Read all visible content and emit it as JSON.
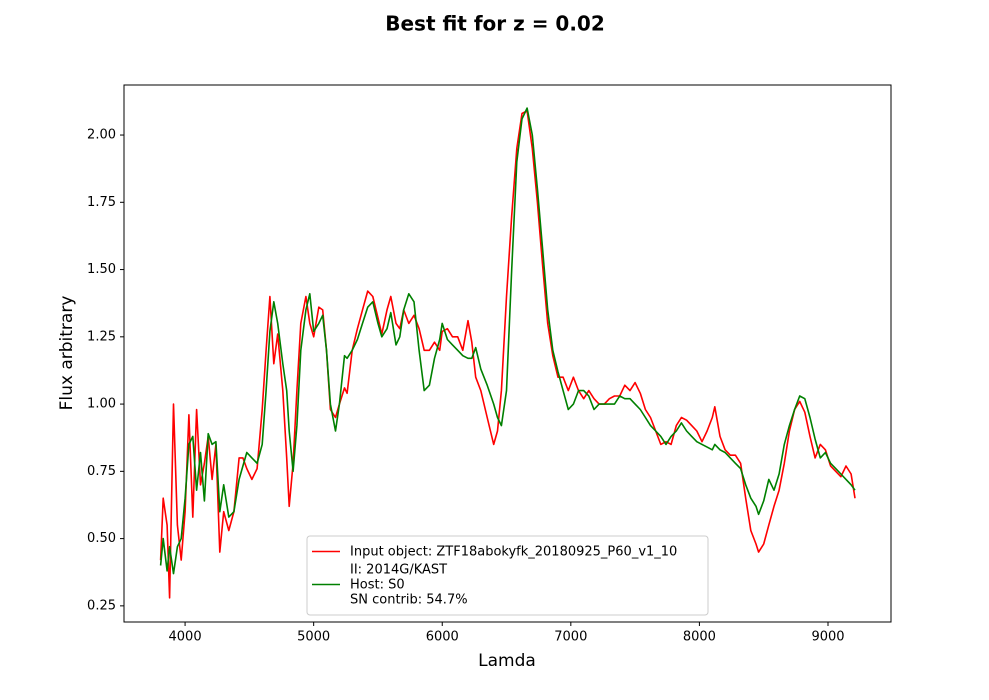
{
  "chart_data": {
    "type": "line",
    "title": "Best fit for z = 0.02",
    "xlabel": "Lamda",
    "ylabel": "Flux arbitrary",
    "x": [
      3810,
      3830,
      3860,
      3880,
      3910,
      3940,
      3970,
      4000,
      4030,
      4060,
      4090,
      4120,
      4150,
      4180,
      4210,
      4240,
      4270,
      4300,
      4340,
      4380,
      4420,
      4450,
      4480,
      4520,
      4560,
      4600,
      4630,
      4660,
      4690,
      4720,
      4760,
      4790,
      4810,
      4840,
      4870,
      4900,
      4940,
      4970,
      5000,
      5040,
      5070,
      5100,
      5130,
      5170,
      5200,
      5240,
      5260,
      5300,
      5340,
      5380,
      5420,
      5460,
      5500,
      5530,
      5570,
      5600,
      5640,
      5670,
      5700,
      5740,
      5780,
      5820,
      5860,
      5900,
      5940,
      5980,
      6000,
      6040,
      6080,
      6120,
      6160,
      6200,
      6230,
      6260,
      6300,
      6350,
      6400,
      6430,
      6460,
      6500,
      6540,
      6580,
      6620,
      6660,
      6700,
      6740,
      6780,
      6820,
      6860,
      6900,
      6940,
      6980,
      7020,
      7060,
      7100,
      7140,
      7180,
      7220,
      7260,
      7300,
      7340,
      7380,
      7420,
      7460,
      7500,
      7540,
      7580,
      7620,
      7660,
      7700,
      7740,
      7780,
      7820,
      7860,
      7900,
      7940,
      7980,
      8020,
      8060,
      8100,
      8120,
      8160,
      8200,
      8240,
      8280,
      8320,
      8360,
      8400,
      8440,
      8460,
      8500,
      8540,
      8580,
      8620,
      8660,
      8700,
      8740,
      8780,
      8820,
      8860,
      8900,
      8940,
      8980,
      9020,
      9060,
      9100,
      9140,
      9180,
      9210
    ],
    "series": [
      {
        "name": "Input object: ZTF18abokyfk_20180925_P60_v1_10",
        "color": "#ff0000",
        "values": [
          0.42,
          0.65,
          0.55,
          0.28,
          1.0,
          0.55,
          0.42,
          0.6,
          0.96,
          0.58,
          0.98,
          0.7,
          0.78,
          0.88,
          0.72,
          0.85,
          0.45,
          0.6,
          0.53,
          0.6,
          0.8,
          0.8,
          0.76,
          0.72,
          0.76,
          0.98,
          1.2,
          1.4,
          1.15,
          1.26,
          1.05,
          0.8,
          0.62,
          0.78,
          1.05,
          1.3,
          1.4,
          1.3,
          1.25,
          1.36,
          1.35,
          1.2,
          0.98,
          0.95,
          1.0,
          1.06,
          1.04,
          1.2,
          1.28,
          1.35,
          1.42,
          1.4,
          1.32,
          1.26,
          1.35,
          1.4,
          1.3,
          1.28,
          1.35,
          1.3,
          1.33,
          1.28,
          1.2,
          1.2,
          1.23,
          1.2,
          1.27,
          1.28,
          1.25,
          1.25,
          1.2,
          1.31,
          1.23,
          1.1,
          1.05,
          0.95,
          0.85,
          0.9,
          1.05,
          1.4,
          1.7,
          1.95,
          2.08,
          2.09,
          1.95,
          1.75,
          1.52,
          1.3,
          1.18,
          1.1,
          1.1,
          1.05,
          1.1,
          1.05,
          1.02,
          1.05,
          1.02,
          1.0,
          1.0,
          1.02,
          1.03,
          1.03,
          1.07,
          1.05,
          1.08,
          1.04,
          0.98,
          0.95,
          0.9,
          0.85,
          0.86,
          0.85,
          0.92,
          0.95,
          0.94,
          0.92,
          0.9,
          0.86,
          0.9,
          0.95,
          0.99,
          0.88,
          0.83,
          0.81,
          0.81,
          0.78,
          0.65,
          0.53,
          0.48,
          0.45,
          0.48,
          0.55,
          0.62,
          0.68,
          0.78,
          0.9,
          0.98,
          1.01,
          0.97,
          0.88,
          0.8,
          0.85,
          0.83,
          0.77,
          0.75,
          0.73,
          0.77,
          0.74,
          0.65
        ]
      },
      {
        "name": "II: 2014G/KAST\nHost: S0\nSN contrib:  54.7%",
        "color": "#008000",
        "values": [
          0.4,
          0.5,
          0.38,
          0.47,
          0.37,
          0.47,
          0.5,
          0.65,
          0.85,
          0.88,
          0.68,
          0.82,
          0.64,
          0.89,
          0.85,
          0.86,
          0.6,
          0.7,
          0.58,
          0.6,
          0.72,
          0.77,
          0.82,
          0.8,
          0.78,
          0.85,
          1.05,
          1.27,
          1.38,
          1.3,
          1.15,
          1.05,
          0.9,
          0.75,
          0.92,
          1.2,
          1.35,
          1.41,
          1.27,
          1.3,
          1.33,
          1.2,
          1.0,
          0.9,
          1.0,
          1.18,
          1.17,
          1.2,
          1.24,
          1.3,
          1.36,
          1.38,
          1.3,
          1.25,
          1.28,
          1.34,
          1.22,
          1.25,
          1.35,
          1.41,
          1.38,
          1.2,
          1.05,
          1.07,
          1.17,
          1.24,
          1.3,
          1.24,
          1.22,
          1.2,
          1.18,
          1.17,
          1.17,
          1.21,
          1.13,
          1.07,
          1.0,
          0.95,
          0.92,
          1.05,
          1.5,
          1.9,
          2.06,
          2.1,
          2.0,
          1.8,
          1.58,
          1.35,
          1.2,
          1.12,
          1.05,
          0.98,
          1.0,
          1.05,
          1.05,
          1.03,
          0.98,
          1.0,
          1.0,
          1.0,
          1.0,
          1.03,
          1.02,
          1.02,
          1.0,
          0.98,
          0.95,
          0.92,
          0.9,
          0.88,
          0.85,
          0.88,
          0.9,
          0.93,
          0.9,
          0.88,
          0.86,
          0.85,
          0.84,
          0.83,
          0.85,
          0.83,
          0.82,
          0.8,
          0.78,
          0.76,
          0.7,
          0.65,
          0.62,
          0.59,
          0.64,
          0.72,
          0.68,
          0.74,
          0.85,
          0.92,
          0.98,
          1.03,
          1.02,
          0.95,
          0.87,
          0.8,
          0.82,
          0.78,
          0.76,
          0.74,
          0.72,
          0.7,
          0.68
        ]
      }
    ],
    "xlim": [
      3525,
      9490
    ],
    "xticks": [
      4000,
      5000,
      6000,
      7000,
      8000,
      9000
    ],
    "ylim": [
      0.19,
      2.186
    ],
    "yticks": [
      0.25,
      {
        "value": 0.5,
        "label": "0.50"
      },
      0.75,
      {
        "value": 1,
        "label": "1.00"
      },
      1.25,
      {
        "value": 1.5,
        "label": "1.50"
      },
      1.75,
      {
        "value": 2,
        "label": "2.00"
      }
    ],
    "grid": false,
    "legend": "lower center"
  }
}
